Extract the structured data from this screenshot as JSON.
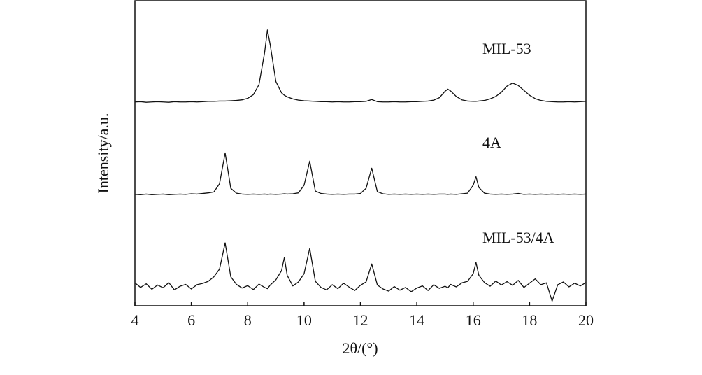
{
  "chart_data": {
    "type": "line",
    "xlabel": "2θ/(°)",
    "ylabel": "Intensity/a.u.",
    "x": [
      4,
      4.2,
      4.4,
      4.6,
      4.8,
      5,
      5.2,
      5.4,
      5.6,
      5.8,
      6,
      6.2,
      6.4,
      6.6,
      6.8,
      7,
      7.2,
      7.4,
      7.6,
      7.8,
      8,
      8.2,
      8.4,
      8.6,
      8.7,
      8.8,
      9,
      9.2,
      9.3,
      9.4,
      9.6,
      9.8,
      10,
      10.2,
      10.4,
      10.6,
      10.8,
      11,
      11.2,
      11.4,
      11.6,
      11.8,
      12,
      12.2,
      12.4,
      12.6,
      12.8,
      13,
      13.2,
      13.4,
      13.6,
      13.8,
      14,
      14.2,
      14.4,
      14.6,
      14.8,
      15,
      15.1,
      15.2,
      15.4,
      15.6,
      15.8,
      16,
      16.1,
      16.2,
      16.4,
      16.6,
      16.8,
      17,
      17.2,
      17.4,
      17.6,
      17.8,
      18,
      18.2,
      18.4,
      18.6,
      18.8,
      19,
      19.2,
      19.4,
      19.6,
      19.8,
      20
    ],
    "series": [
      {
        "name": "MIL-53",
        "color": "#111111",
        "values": [
          66.8,
          66.9,
          66.7,
          66.8,
          66.9,
          66.8,
          66.7,
          66.9,
          66.8,
          66.8,
          66.9,
          66.8,
          66.9,
          67.0,
          67.0,
          67.1,
          67.1,
          67.2,
          67.3,
          67.5,
          68.0,
          69.2,
          72.5,
          83.0,
          90.4,
          85.5,
          73.5,
          69.8,
          69.0,
          68.5,
          67.8,
          67.4,
          67.2,
          67.1,
          67.0,
          66.9,
          66.9,
          66.8,
          66.9,
          66.8,
          66.8,
          66.9,
          66.9,
          67.0,
          67.6,
          66.9,
          66.8,
          66.8,
          66.9,
          66.8,
          66.8,
          66.9,
          66.9,
          67.0,
          67.1,
          67.4,
          68.2,
          70.3,
          71.0,
          70.4,
          68.6,
          67.5,
          67.1,
          67.0,
          67.0,
          67.1,
          67.3,
          67.8,
          68.6,
          70.0,
          72.0,
          73.0,
          72.2,
          70.6,
          69.0,
          67.9,
          67.3,
          67.0,
          66.9,
          66.8,
          66.8,
          66.9,
          66.8,
          66.9,
          67.0
        ]
      },
      {
        "name": "4A",
        "color": "#111111",
        "values": [
          36.5,
          36.4,
          36.6,
          36.4,
          36.5,
          36.6,
          36.4,
          36.5,
          36.6,
          36.5,
          36.7,
          36.6,
          36.8,
          37.0,
          37.3,
          40.0,
          50.1,
          38.5,
          36.9,
          36.6,
          36.5,
          36.6,
          36.5,
          36.6,
          36.5,
          36.6,
          36.5,
          36.6,
          36.7,
          36.6,
          36.7,
          37.0,
          39.5,
          47.4,
          37.6,
          36.8,
          36.6,
          36.5,
          36.6,
          36.5,
          36.6,
          36.6,
          36.8,
          38.5,
          45.1,
          37.4,
          36.7,
          36.5,
          36.6,
          36.5,
          36.6,
          36.5,
          36.6,
          36.5,
          36.6,
          36.5,
          36.6,
          36.6,
          36.5,
          36.6,
          36.5,
          36.7,
          36.9,
          39.5,
          42.3,
          38.8,
          36.9,
          36.6,
          36.5,
          36.6,
          36.5,
          36.6,
          36.8,
          36.5,
          36.6,
          36.5,
          36.6,
          36.5,
          36.6,
          36.5,
          36.6,
          36.5,
          36.6,
          36.5,
          36.6
        ]
      },
      {
        "name": "MIL-53/4A",
        "color": "#111111",
        "values": [
          7.5,
          6.0,
          7.2,
          5.4,
          6.8,
          5.9,
          7.6,
          5.2,
          6.4,
          7.0,
          5.5,
          6.9,
          7.3,
          8.0,
          9.5,
          12.0,
          20.6,
          9.5,
          7.0,
          5.8,
          6.6,
          5.3,
          7.1,
          6.0,
          5.6,
          6.8,
          8.5,
          11.5,
          15.8,
          10.0,
          6.5,
          7.8,
          10.5,
          18.8,
          8.0,
          6.0,
          5.2,
          6.9,
          5.6,
          7.4,
          6.1,
          5.0,
          6.7,
          7.8,
          13.7,
          6.8,
          5.5,
          4.8,
          6.3,
          5.1,
          6.0,
          4.6,
          5.8,
          6.5,
          5.0,
          6.9,
          5.7,
          6.4,
          5.9,
          7.0,
          6.2,
          7.5,
          8.0,
          10.5,
          14.2,
          10.0,
          7.6,
          6.4,
          8.1,
          6.8,
          7.9,
          6.7,
          8.3,
          6.0,
          7.4,
          8.8,
          6.9,
          7.5,
          1.5,
          6.9,
          7.8,
          6.2,
          7.4,
          6.5,
          7.6
        ]
      }
    ],
    "xlim": [
      4,
      20
    ],
    "xticks": [
      4,
      6,
      8,
      10,
      12,
      14,
      16,
      18,
      20
    ],
    "ylim": [
      0,
      100
    ]
  }
}
